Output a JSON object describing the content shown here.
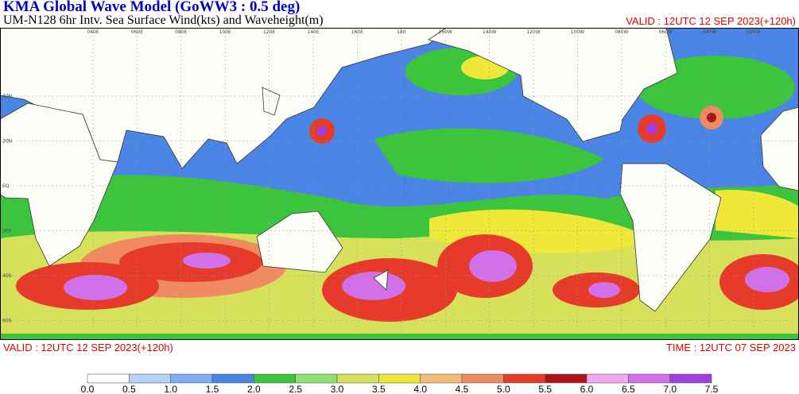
{
  "header": {
    "title": "KMA  Global Wave Model (GoWW3 : 0.5 deg)",
    "subtitle": "UM-N128  6hr Intv. Sea Surface Wind(kts) and Waveheight(m)",
    "valid": "VALID : 12UTC 12 SEP 2023(+120h)"
  },
  "map": {
    "lon_labels": [
      "040E",
      "060E",
      "080E",
      "100E",
      "120E",
      "140E",
      "160E",
      "180",
      "160W",
      "140W",
      "120W",
      "100W",
      "080W",
      "060W",
      "040W",
      "020W"
    ],
    "lat_labels": [
      "40N",
      "20N",
      "EQ",
      "20S",
      "40S",
      "60S"
    ]
  },
  "footer": {
    "valid": "VALID : 12UTC 12 SEP 2023(+120h)",
    "time": "TIME : 12UTC 07 SEP 2023"
  },
  "colorbar": {
    "labels": [
      "0.0",
      "0.5",
      "1.0",
      "1.5",
      "2.0",
      "2.5",
      "3.0",
      "3.5",
      "4.0",
      "4.5",
      "5.0",
      "5.5",
      "6.0",
      "6.5",
      "7.0",
      "7.5"
    ],
    "colors": [
      "#ffffff",
      "#b4d2f6",
      "#7eaef0",
      "#4a84e4",
      "#3cc43c",
      "#8ee070",
      "#d6e05a",
      "#f0e838",
      "#f0bc78",
      "#f08a60",
      "#e63a2a",
      "#ac1414",
      "#f0a8f0",
      "#d270ea",
      "#a040e0"
    ]
  }
}
